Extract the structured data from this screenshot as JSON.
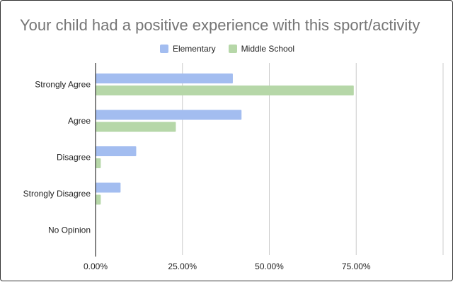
{
  "chart_data": {
    "type": "bar",
    "orientation": "horizontal",
    "title": "Your child had a positive experience with this sport/activity",
    "categories": [
      "Strongly Agree",
      "Agree",
      "Disagree",
      "Strongly Disagree",
      "No Opinion"
    ],
    "series": [
      {
        "name": "Elementary",
        "color": "#a3bdf0",
        "values": [
          0.395,
          0.42,
          0.117,
          0.072,
          0.0
        ]
      },
      {
        "name": "Middle School",
        "color": "#b6d7a8",
        "values": [
          0.743,
          0.231,
          0.015,
          0.015,
          0.0
        ]
      }
    ],
    "xticks": [
      "0.00%",
      "25.00%",
      "50.00%",
      "75.00%"
    ],
    "xlim": [
      0,
      1
    ],
    "grid": true,
    "legend_position": "top"
  }
}
